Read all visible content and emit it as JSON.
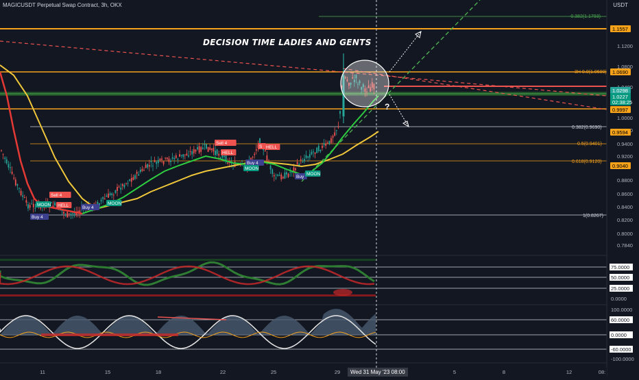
{
  "header": {
    "title": "MAGICUSDT Perpetual Swap Contract, 3h, OKX",
    "currency": "USDT"
  },
  "annotation": {
    "headline": "DECISION TIME LADIES AND GENTS",
    "question_mark": "?"
  },
  "price_axis": {
    "ticks": [
      "1.1200",
      "1.0800",
      "1.0400",
      "1.0000",
      "0.9800",
      "0.9400",
      "0.9200",
      "0.8800",
      "0.8600",
      "0.8400",
      "0.8200",
      "0.8000",
      "0.7840"
    ],
    "badges": [
      {
        "text": "1.1557",
        "color": "#f7a21b",
        "text_color": "#000000"
      },
      {
        "text": "1.0690",
        "color": "#f7a21b",
        "text_color": "#000000"
      },
      {
        "text": "1.0298",
        "color": "#26a69a",
        "text_color": "#ffffff"
      },
      {
        "text": "1.0227",
        "color": "#089981",
        "text_color": "#ffffff"
      },
      {
        "text": "02:38:25",
        "color": "#089981",
        "text_color": "#ffffff"
      },
      {
        "text": "0.9997",
        "color": "#f7a21b",
        "text_color": "#000000"
      },
      {
        "text": "0.9594",
        "color": "#f7a21b",
        "text_color": "#000000"
      },
      {
        "text": "0.9040",
        "color": "#f7a21b",
        "text_color": "#000000"
      }
    ]
  },
  "fib_levels": [
    {
      "label": "-0.382(1.1793)",
      "color": "#4caf50"
    },
    {
      "label": "0.382(0.9690)",
      "color": "#d1d4dc"
    },
    {
      "label": "0.5(0.9401)",
      "color": "#f7a21b"
    },
    {
      "label": "0.618(0.9120)",
      "color": "#f7a21b"
    },
    {
      "label": "1(0.8267)",
      "color": "#d1d4dc"
    },
    {
      "label": "3H 0.0(1.0690)",
      "color": "#f7a21b"
    }
  ],
  "signals": [
    {
      "text": "Sell 4",
      "kind": "sell"
    },
    {
      "text": "HELL",
      "kind": "sell"
    },
    {
      "text": "Buy 4",
      "kind": "buy"
    },
    {
      "text": "Buy 4",
      "kind": "buy"
    },
    {
      "text": "MOON",
      "kind": "moon"
    },
    {
      "text": "MOON",
      "kind": "moon"
    },
    {
      "text": "Sell 4",
      "kind": "sell"
    },
    {
      "text": "HELL",
      "kind": "sell"
    },
    {
      "text": "Buy 4",
      "kind": "buy"
    },
    {
      "text": "MOON",
      "kind": "moon"
    },
    {
      "text": "S",
      "kind": "sell"
    },
    {
      "text": "HELL",
      "kind": "sell"
    },
    {
      "text": "Buy",
      "kind": "buy"
    },
    {
      "text": "MOON",
      "kind": "moon"
    }
  ],
  "osc1_axis": [
    "75.0000",
    "50.0000",
    "25.0000",
    "0.0000"
  ],
  "osc2_axis": [
    "100.0000",
    "60.0000",
    "0.0000",
    "-60.0000",
    "-100.0000"
  ],
  "time_axis": {
    "ticks": [
      "11",
      "15",
      "18",
      "22",
      "25",
      "29",
      "5",
      "8",
      "12",
      "08:"
    ],
    "cursor_label": "Wed 31 May '23    08:00"
  },
  "colors": {
    "background": "#131722",
    "orange": "#f7a21b",
    "green": "#26a69a",
    "red": "#ef5350",
    "gold_ma": "#f0c73a",
    "green_ma": "#2ecc40",
    "red_ma": "#e53935"
  }
}
